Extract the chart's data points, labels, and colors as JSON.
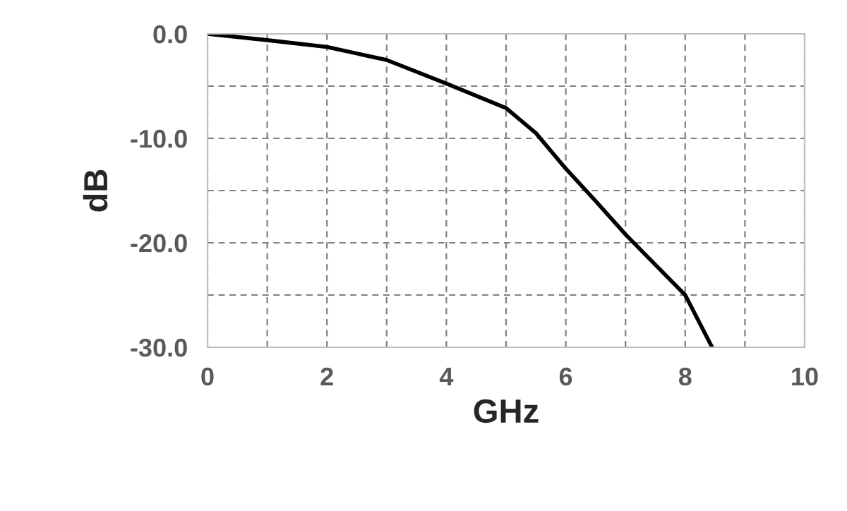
{
  "chart_data": {
    "type": "line",
    "xlabel": "GHz",
    "ylabel": "dB",
    "x": [
      0,
      1,
      2,
      3,
      4,
      5,
      5.5,
      6,
      6.5,
      7,
      7.5,
      8,
      8.45
    ],
    "series": [
      {
        "color": "#000000",
        "values": [
          0,
          -0.6,
          -1.25,
          -2.5,
          -4.75,
          -7.1,
          -9.5,
          -12.9,
          -16,
          -19.2,
          -22.1,
          -25,
          -30
        ]
      }
    ],
    "xlim": [
      0,
      10
    ],
    "ylim": [
      -30,
      0
    ],
    "xticks": [
      0,
      {
        "value": 1,
        "label": null
      },
      2,
      {
        "value": 3,
        "label": null
      },
      4,
      {
        "value": 5,
        "label": null
      },
      6,
      {
        "value": 7,
        "label": null
      },
      8,
      {
        "value": 9,
        "label": null
      },
      10
    ],
    "yticks": [
      {
        "value": -30,
        "label": "-30.0"
      },
      {
        "value": -25,
        "label": null
      },
      {
        "value": -20,
        "label": "-20.0"
      },
      {
        "value": -15,
        "label": null
      },
      {
        "value": -10,
        "label": "-10.0"
      },
      {
        "value": -5,
        "label": null
      },
      {
        "value": 0,
        "label": "0.0"
      }
    ],
    "grid": true,
    "line_style": "solid"
  }
}
